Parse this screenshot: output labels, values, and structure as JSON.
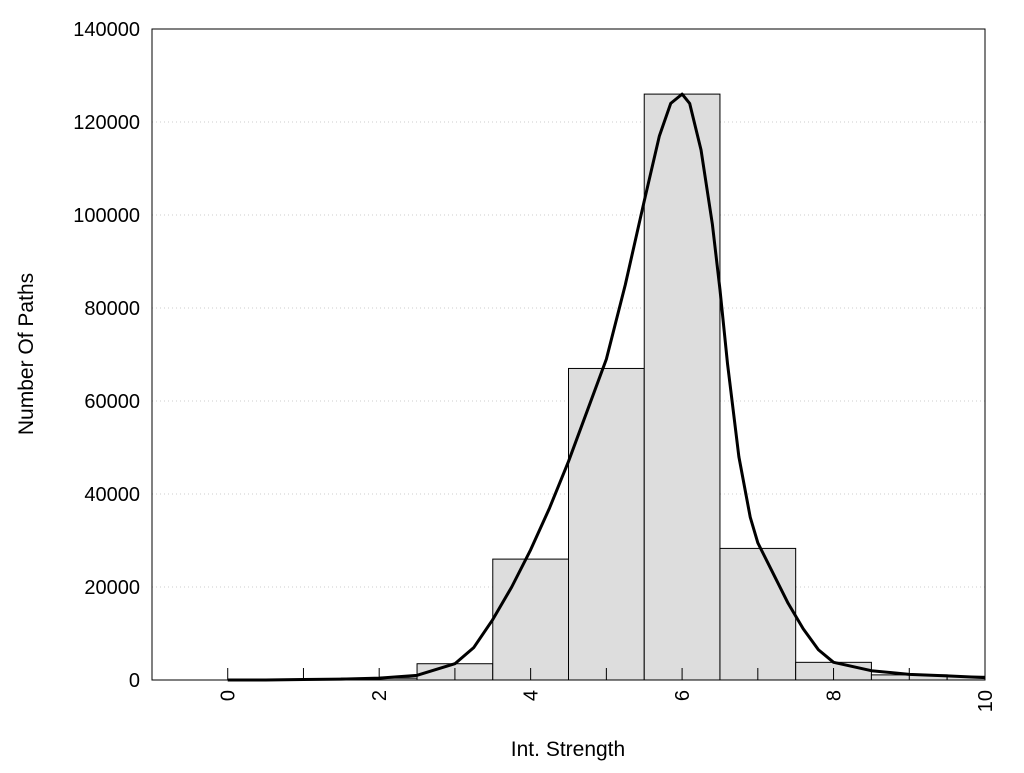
{
  "chart_data": {
    "type": "bar",
    "title": "",
    "xlabel": "Int. Strength",
    "ylabel": "Number Of Paths",
    "xlim": [
      -1,
      10
    ],
    "ylim": [
      0,
      140000
    ],
    "grid": true,
    "bar_color": "#dddddd",
    "x_ticks": [
      0,
      2,
      4,
      6,
      8,
      10
    ],
    "y_ticks": [
      0,
      20000,
      40000,
      60000,
      80000,
      100000,
      120000,
      140000
    ],
    "bars": {
      "x": [
        0,
        1,
        2,
        3,
        4,
        5,
        6,
        7,
        8,
        9,
        10
      ],
      "values": [
        0,
        100,
        400,
        3500,
        26000,
        67000,
        126000,
        28300,
        3800,
        1100,
        800
      ],
      "width": 1
    },
    "fit_curve": {
      "x": [
        0,
        0.5,
        1,
        1.5,
        2,
        2.5,
        3,
        3.25,
        3.5,
        3.75,
        4,
        4.25,
        4.5,
        4.75,
        5,
        5.25,
        5.5,
        5.7,
        5.85,
        6,
        6.1,
        6.25,
        6.4,
        6.5,
        6.6,
        6.75,
        6.9,
        7,
        7.2,
        7.4,
        7.6,
        7.8,
        8,
        8.5,
        9,
        9.5,
        10
      ],
      "y": [
        0,
        0,
        100,
        200,
        400,
        1000,
        3500,
        7000,
        13000,
        20000,
        28000,
        37000,
        47000,
        58000,
        69000,
        85000,
        103000,
        117000,
        124000,
        126000,
        124000,
        114000,
        98000,
        84000,
        68000,
        48000,
        35000,
        29500,
        23000,
        16500,
        11000,
        6500,
        3800,
        2000,
        1200,
        900,
        500
      ]
    }
  }
}
